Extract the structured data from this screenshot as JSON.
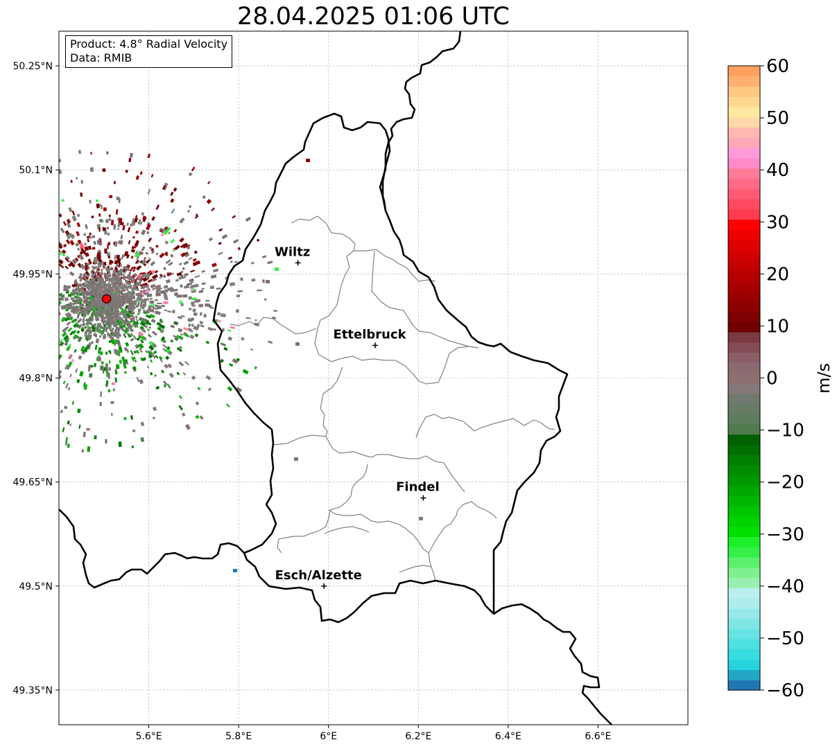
{
  "title": "28.04.2025 01:06 UTC",
  "info": {
    "product_line": "Product: 4.8° Radial Velocity",
    "data_line": "Data: RMIB"
  },
  "axes": {
    "lon_range": [
      5.4,
      6.8
    ],
    "lat_range": [
      49.3,
      50.3
    ],
    "x_ticks": [
      {
        "value": 5.6,
        "label": "5.6°E"
      },
      {
        "value": 5.8,
        "label": "5.8°E"
      },
      {
        "value": 6.0,
        "label": "6°E"
      },
      {
        "value": 6.2,
        "label": "6.2°E"
      },
      {
        "value": 6.4,
        "label": "6.4°E"
      },
      {
        "value": 6.6,
        "label": "6.6°E"
      }
    ],
    "y_ticks": [
      {
        "value": 50.25,
        "label": "50.25°N"
      },
      {
        "value": 50.1,
        "label": "50.1°N"
      },
      {
        "value": 49.95,
        "label": "49.95°N"
      },
      {
        "value": 49.8,
        "label": "49.8°N"
      },
      {
        "value": 49.65,
        "label": "49.65°N"
      },
      {
        "value": 49.5,
        "label": "49.5°N"
      },
      {
        "value": 49.35,
        "label": "49.35°N"
      }
    ],
    "grid": true
  },
  "radar_site": {
    "lon": 5.506,
    "lat": 49.914,
    "color": "#ff0000"
  },
  "cities": [
    {
      "name": "Wiltz",
      "lon": 5.932,
      "lat": 49.966
    },
    {
      "name": "Ettelbruck",
      "lon": 6.104,
      "lat": 49.847
    },
    {
      "name": "Findel",
      "lon": 6.211,
      "lat": 49.627
    },
    {
      "name": "Esch/Alzette",
      "lon": 5.99,
      "lat": 49.5
    }
  ],
  "colorbar": {
    "label": "m/s",
    "min": -60,
    "max": 60,
    "ticks": [
      {
        "value": 60,
        "label": "60"
      },
      {
        "value": 50,
        "label": "50"
      },
      {
        "value": 40,
        "label": "40"
      },
      {
        "value": 30,
        "label": "30"
      },
      {
        "value": 20,
        "label": "20"
      },
      {
        "value": 10,
        "label": "10"
      },
      {
        "value": 0,
        "label": "0"
      },
      {
        "value": -10,
        "label": "−10"
      },
      {
        "value": -20,
        "label": "−20"
      },
      {
        "value": -30,
        "label": "−30"
      },
      {
        "value": -40,
        "label": "−40"
      },
      {
        "value": -50,
        "label": "−50"
      },
      {
        "value": -60,
        "label": "−60"
      }
    ],
    "colors": [
      "#1f78b4",
      "#24a6c8",
      "#27d3dc",
      "#37dde0",
      "#4fe0e2",
      "#67e3e4",
      "#7fe6e6",
      "#97e9e9",
      "#aeeded",
      "#b9f0ef",
      "#98f0b0",
      "#7ef08e",
      "#5af06c",
      "#34f049",
      "#1cf02a",
      "#00e000",
      "#00d200",
      "#00c400",
      "#00b600",
      "#00a800",
      "#009a00",
      "#008c00",
      "#007e00",
      "#006e00",
      "#006000",
      "#4e7a4e",
      "#5b7d5b",
      "#667a66",
      "#707a70",
      "#857878",
      "#8c7070",
      "#8c6a72",
      "#8c5e68",
      "#844c54",
      "#7a3a42",
      "#700000",
      "#7e0000",
      "#8c0000",
      "#9a0000",
      "#a80000",
      "#b60000",
      "#c40000",
      "#d20000",
      "#e00000",
      "#ee0000",
      "#fe0000",
      "#ff3b4f",
      "#ff4a62",
      "#ff5a74",
      "#ff6a86",
      "#ff7a98",
      "#ff8aca",
      "#ff9ad8",
      "#ffa8b8",
      "#ffb8b0",
      "#ffd8a8",
      "#ffe8a0",
      "#ffd890",
      "#ffc880",
      "#ffb070",
      "#ffa060"
    ]
  }
}
